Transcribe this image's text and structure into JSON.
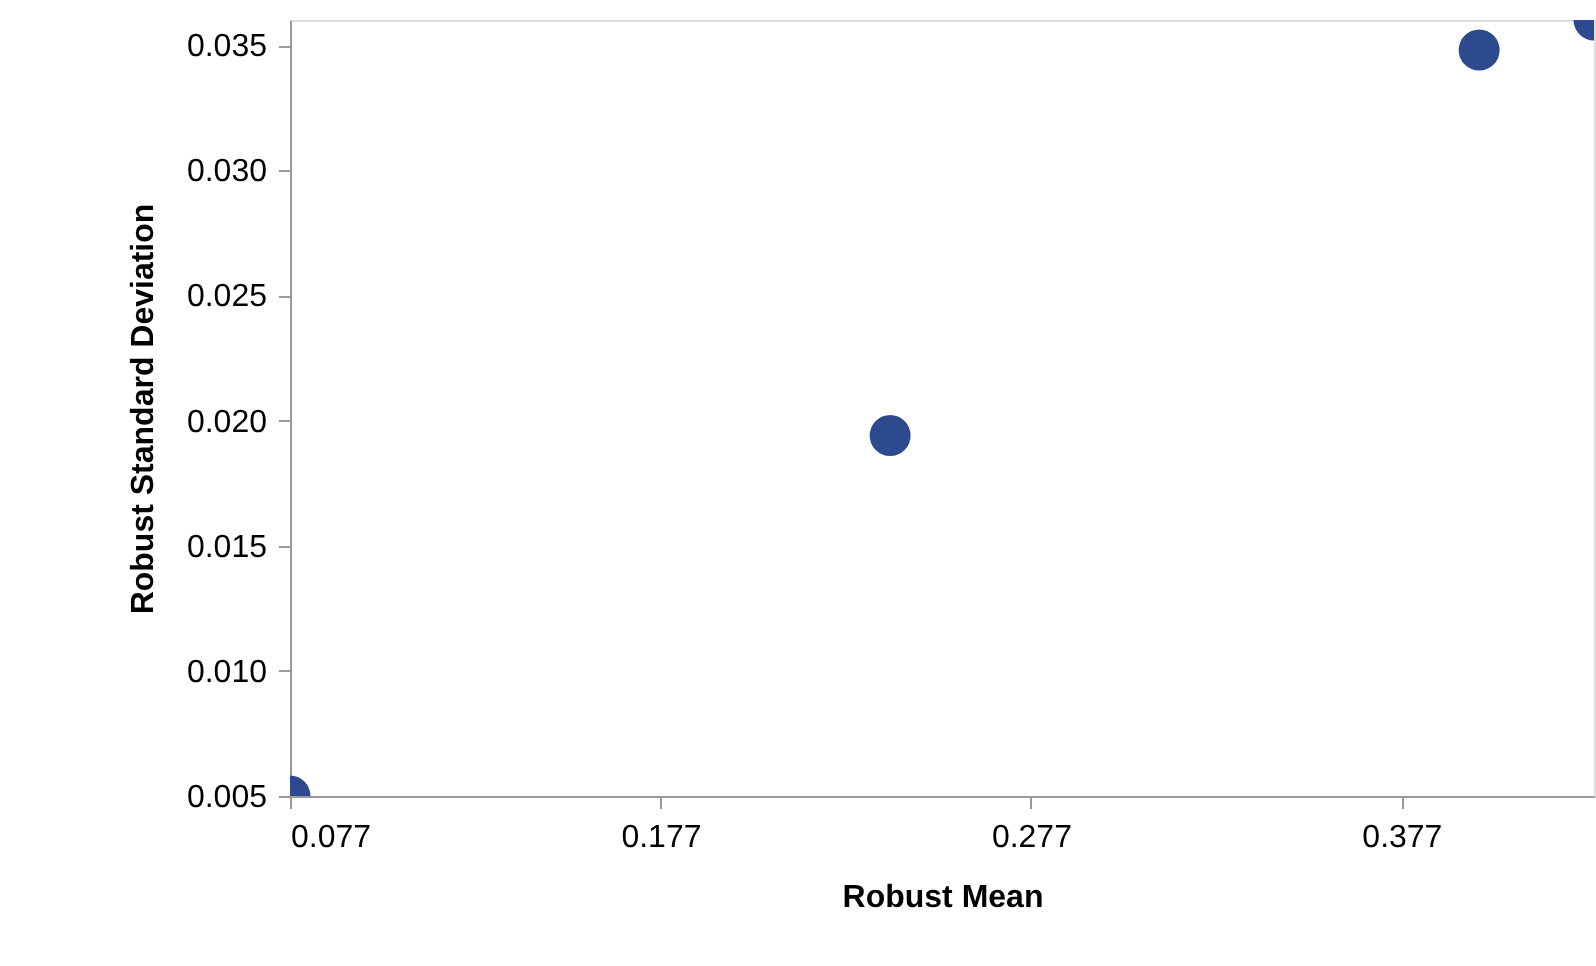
{
  "chart_data": {
    "type": "scatter",
    "xlabel": "Robust Mean",
    "ylabel": "Robust Standard Deviation",
    "x": [
      0.077,
      0.239,
      0.398,
      0.429
    ],
    "series": [
      {
        "color": "#2e4a8f",
        "values": [
          0.005,
          0.0194,
          0.0348,
          0.036
        ]
      }
    ],
    "xlim": [
      0.077,
      0.429
    ],
    "xticks": [
      0.077,
      0.177,
      0.277,
      0.377
    ],
    "ylim": [
      0.005,
      0.036
    ],
    "yticks": [
      0.005,
      {
        "value": 0.01,
        "label": "0.010"
      },
      0.015,
      {
        "value": 0.02,
        "label": "0.020"
      },
      0.025,
      {
        "value": 0.03,
        "label": "0.030"
      },
      0.035
    ],
    "grid": false,
    "marker": "circle"
  }
}
